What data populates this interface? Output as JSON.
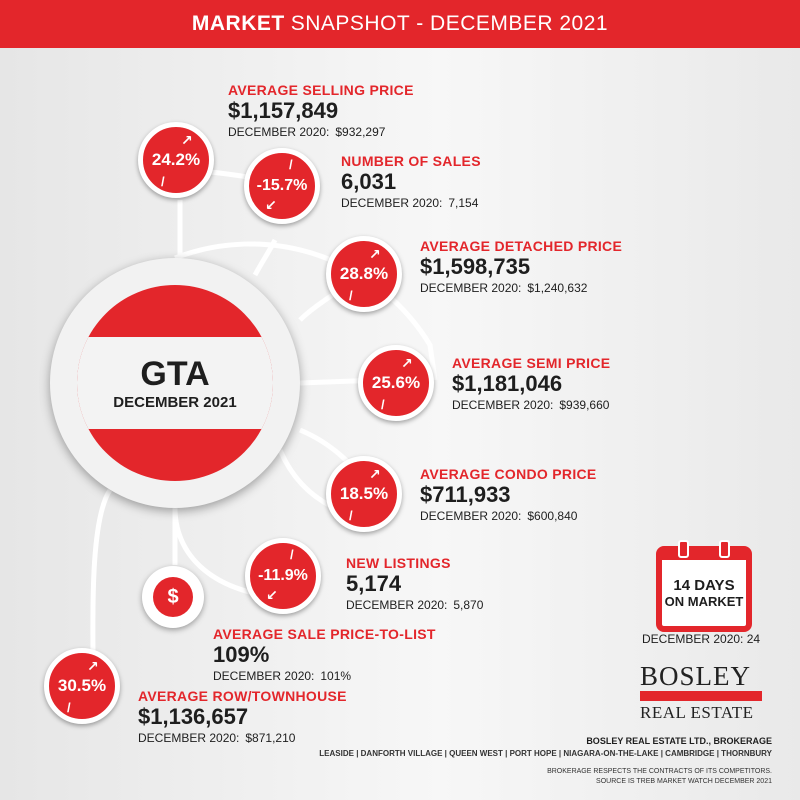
{
  "header": {
    "bold": "MARKET",
    "rest": "SNAPSHOT  -  DECEMBER 2021"
  },
  "hub": {
    "title": "GTA",
    "subtitle": "DECEMBER 2021"
  },
  "stats": [
    {
      "key": "avg_selling",
      "label": "AVERAGE SELLING PRICE",
      "value": "$1,157,849",
      "prev_label": "DECEMBER 2020:",
      "prev_value": "$932,297",
      "change": "24.2%",
      "direction": "up"
    },
    {
      "key": "num_sales",
      "label": "NUMBER OF SALES",
      "value": "6,031",
      "prev_label": "DECEMBER 2020:",
      "prev_value": "7,154",
      "change": "-15.7%",
      "direction": "down"
    },
    {
      "key": "avg_detached",
      "label": "AVERAGE DETACHED PRICE",
      "value": "$1,598,735",
      "prev_label": "DECEMBER 2020:",
      "prev_value": "$1,240,632",
      "change": "28.8%",
      "direction": "up"
    },
    {
      "key": "avg_semi",
      "label": "AVERAGE SEMI PRICE",
      "value": "$1,181,046",
      "prev_label": "DECEMBER 2020:",
      "prev_value": "$939,660",
      "change": "25.6%",
      "direction": "up"
    },
    {
      "key": "avg_condo",
      "label": "AVERAGE CONDO PRICE",
      "value": "$711,933",
      "prev_label": "DECEMBER 2020:",
      "prev_value": "$600,840",
      "change": "18.5%",
      "direction": "up"
    },
    {
      "key": "new_listings",
      "label": "NEW LISTINGS",
      "value": "5,174",
      "prev_label": "DECEMBER 2020:",
      "prev_value": "5,870",
      "change": "-11.9%",
      "direction": "down"
    },
    {
      "key": "sale_to_list",
      "label": "AVERAGE SALE PRICE-TO-LIST",
      "value": "109%",
      "prev_label": "DECEMBER 2020:",
      "prev_value": "101%"
    },
    {
      "key": "avg_row",
      "label": "AVERAGE ROW/TOWNHOUSE",
      "value": "$1,136,657",
      "prev_label": "DECEMBER 2020:",
      "prev_value": "$871,210",
      "change": "30.5%",
      "direction": "up"
    }
  ],
  "dollar_icon": {
    "glyph": "$"
  },
  "calendar": {
    "days": "14 DAYS",
    "label": "ON MARKET",
    "prev": "DECEMBER 2020:  24"
  },
  "logo": {
    "line1": "BOSLEY",
    "line2": "REAL ESTATE"
  },
  "footer": {
    "company": "BOSLEY REAL ESTATE LTD., BROKERAGE",
    "locations": "LEASIDE | DANFORTH VILLAGE | QUEEN WEST | PORT HOPE | NIAGARA-ON-THE-LAKE | CAMBRIDGE | THORNBURY",
    "disclaimer1": "BROKERAGE RESPECTS THE CONTRACTS OF ITS COMPETITORS.",
    "disclaimer2": "SOURCE IS TREB MARKET WATCH DECEMBER 2021"
  },
  "colors": {
    "accent": "#e3262b",
    "text": "#1e1e1e"
  }
}
